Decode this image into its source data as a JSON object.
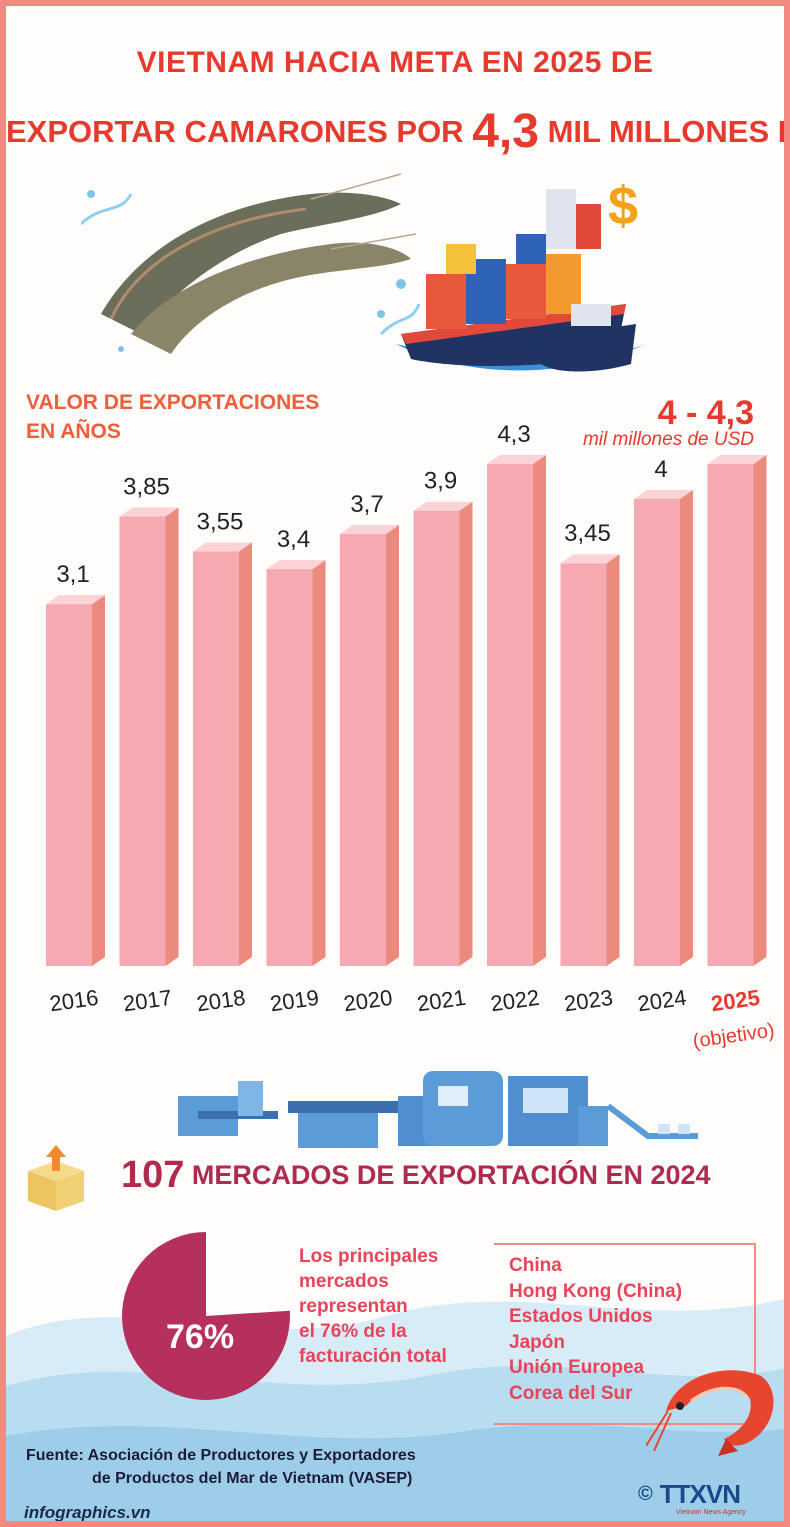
{
  "title": {
    "line1": "VIETNAM HACIA META EN 2025 DE",
    "line2_pre": "EXPORTAR CAMARONES POR",
    "line2_big": "4,3",
    "line2_post": "MIL MILLONES DE USD"
  },
  "section": {
    "line1": "VALOR DE EXPORTACIONES",
    "line2": "EN AÑOS"
  },
  "target": {
    "range": "4 - 4,3",
    "unit": "mil millones de USD"
  },
  "chart_data": {
    "type": "bar",
    "title": "VALOR DE EXPORTACIONES EN AÑOS",
    "ylabel": "mil millones de USD",
    "categories": [
      "2016",
      "2017",
      "2018",
      "2019",
      "2020",
      "2021",
      "2022",
      "2023",
      "2024",
      "2025"
    ],
    "values": [
      3.1,
      3.85,
      3.55,
      3.4,
      3.7,
      3.9,
      4.3,
      3.45,
      4,
      4.3
    ],
    "value_labels": [
      "3,1",
      "3,85",
      "3,55",
      "3,4",
      "3,7",
      "3,9",
      "4,3",
      "3,45",
      "4",
      ""
    ],
    "target_note": "(objetivo)",
    "target_index": 9,
    "ylim": [
      0,
      4.3
    ],
    "colors": {
      "front": "#f7a9b1",
      "side": "#ec8a7d",
      "top": "#fbd3d6",
      "target_label": "#e63a2e",
      "label": "#222222"
    }
  },
  "markets": {
    "count": "107",
    "title": "MERCADOS DE EXPORTACIÓN EN 2024",
    "percent": "76%",
    "percent_value": 76,
    "description_lines": [
      "Los principales",
      "mercados",
      "representan",
      "el 76% de la",
      "facturación total"
    ],
    "list": [
      "China",
      "Hong Kong (China)",
      "Estados Unidos",
      "Japón",
      "Unión Europea",
      "Corea del Sur"
    ]
  },
  "source": {
    "line1": "Fuente: Asociación de Productores y Exportadores",
    "line2": "de Productos del Mar de Vietnam (VASEP)"
  },
  "footer": {
    "site": "infographics.vn",
    "logo": "TTXVN",
    "logo_sub": "Vietnam News Agency",
    "copyright": "©"
  }
}
